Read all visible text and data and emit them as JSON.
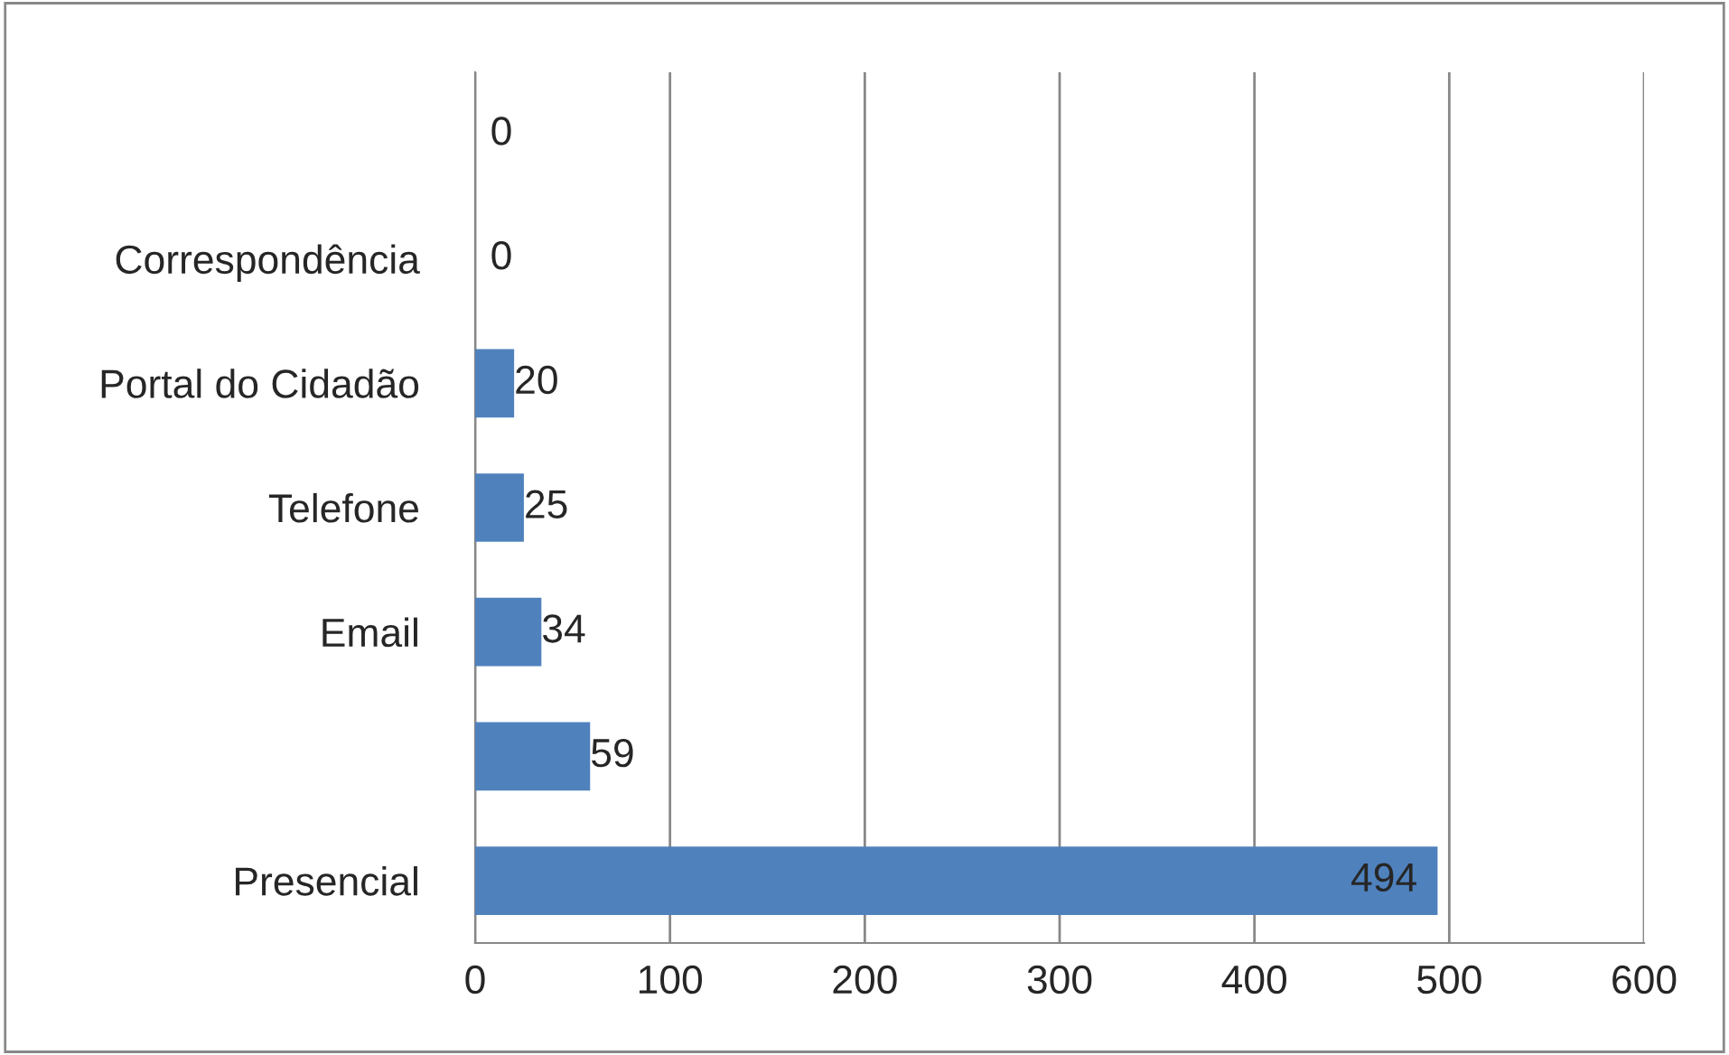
{
  "chart_data": {
    "type": "bar",
    "orientation": "horizontal",
    "categories": [
      null,
      "Correspondência",
      "Portal do Cidadão",
      "Telefone",
      "Email",
      null,
      "Presencial"
    ],
    "values": [
      0,
      0,
      20,
      25,
      34,
      59,
      494
    ],
    "color": "#4f81bd",
    "xlim": [
      0,
      600
    ],
    "xticks": [
      0,
      100,
      200,
      300,
      400,
      500,
      600
    ],
    "grid": "x",
    "data_labels": true
  }
}
